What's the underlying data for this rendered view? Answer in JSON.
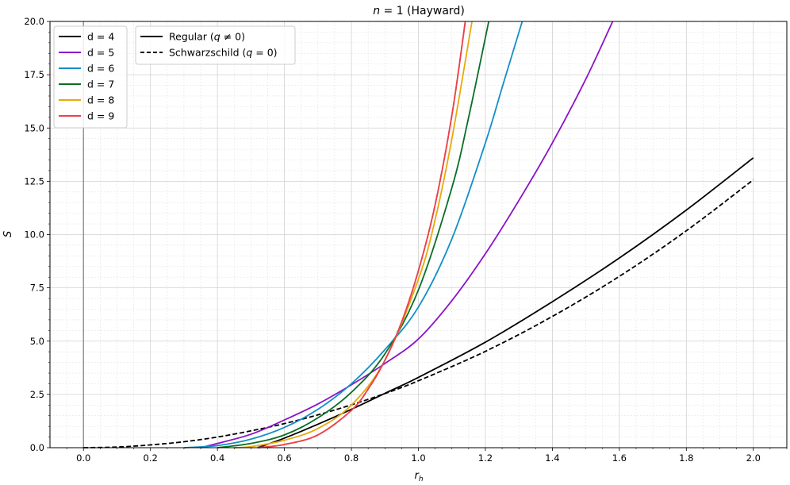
{
  "chart_data": {
    "type": "line",
    "title": "n = 1 (Hayward)",
    "title_parts": {
      "var": "n",
      "rest": " = 1 (Hayward)"
    },
    "xlabel": "r_h",
    "xlabel_parts": {
      "base": "r",
      "sub": "h"
    },
    "ylabel": "S",
    "xlim": [
      -0.1,
      2.1
    ],
    "ylim": [
      0,
      20
    ],
    "xticks": [
      0.0,
      0.2,
      0.4,
      0.6,
      0.8,
      1.0,
      1.2,
      1.4,
      1.6,
      1.8,
      2.0
    ],
    "xtick_labels": [
      "0.0",
      "0.2",
      "0.4",
      "0.6",
      "0.8",
      "1.0",
      "1.2",
      "1.4",
      "1.6",
      "1.8",
      "2.0"
    ],
    "yticks": [
      0.0,
      2.5,
      5.0,
      7.5,
      10.0,
      12.5,
      15.0,
      17.5,
      20.0
    ],
    "ytick_labels": [
      "0.0",
      "2.5",
      "5.0",
      "7.5",
      "10.0",
      "12.5",
      "15.0",
      "17.5",
      "20.0"
    ],
    "grid": true,
    "minor_grid": true,
    "vertical_reference_line_x": 0,
    "legend_dimension": {
      "placement": "top-left",
      "entries": [
        {
          "label": "d = 4",
          "color": "#000000"
        },
        {
          "label": "d = 5",
          "color": "#8b12c8"
        },
        {
          "label": "d = 6",
          "color": "#138fc8"
        },
        {
          "label": "d = 7",
          "color": "#0a6e26"
        },
        {
          "label": "d = 8",
          "color": "#e8a90c"
        },
        {
          "label": "d = 9",
          "color": "#e8434b"
        }
      ]
    },
    "legend_style": {
      "placement": "top-left",
      "entries": [
        {
          "label": "Regular (q ≠ 0)",
          "parts": [
            "Regular (",
            "q",
            " ≠ 0)"
          ],
          "dash": "solid"
        },
        {
          "label": "Schwarzschild (q = 0)",
          "parts": [
            "Schwarzschild (",
            "q",
            " = 0)"
          ],
          "dash": "dashed"
        }
      ]
    },
    "series": [
      {
        "dimension": "d = 4",
        "style": "Regular (q ≠ 0)",
        "color": "#000000",
        "dash": "solid",
        "x": [
          0.52,
          0.6,
          0.7,
          0.8,
          0.9,
          1.0,
          1.2,
          1.4,
          1.6,
          1.8,
          2.0
        ],
        "y": [
          0.0,
          0.45,
          1.1,
          1.8,
          2.55,
          3.3,
          4.95,
          6.85,
          8.9,
          11.15,
          13.6
        ]
      },
      {
        "dimension": "d = 4",
        "style": "Schwarzschild (q = 0)",
        "color": "#000000",
        "dash": "dashed",
        "x": [
          0.0,
          0.1,
          0.2,
          0.3,
          0.4,
          0.5,
          0.6,
          0.7,
          0.8,
          0.9,
          1.0,
          1.2,
          1.4,
          1.6,
          1.8,
          2.0
        ],
        "y": [
          0.0,
          0.03,
          0.13,
          0.28,
          0.5,
          0.79,
          1.13,
          1.54,
          2.01,
          2.54,
          3.14,
          4.52,
          6.16,
          8.04,
          10.18,
          12.57
        ]
      },
      {
        "dimension": "d = 5",
        "style": "Regular (q ≠ 0)",
        "color": "#8b12c8",
        "dash": "solid",
        "x": [
          0.35,
          0.4,
          0.5,
          0.6,
          0.7,
          0.8,
          0.9,
          1.0,
          1.1,
          1.2,
          1.3,
          1.4,
          1.5,
          1.58
        ],
        "y": [
          0.0,
          0.2,
          0.63,
          1.3,
          2.05,
          2.95,
          3.95,
          5.1,
          6.9,
          9.1,
          11.6,
          14.3,
          17.3,
          20.0
        ]
      },
      {
        "dimension": "d = 6",
        "style": "Regular (q ≠ 0)",
        "color": "#138fc8",
        "dash": "solid",
        "x": [
          0.3,
          0.4,
          0.5,
          0.6,
          0.7,
          0.8,
          0.9,
          1.0,
          1.1,
          1.2,
          1.25,
          1.31
        ],
        "y": [
          0.0,
          0.1,
          0.4,
          0.95,
          1.8,
          3.0,
          4.6,
          6.6,
          9.8,
          14.3,
          16.9,
          20.0
        ]
      },
      {
        "dimension": "d = 7",
        "style": "Regular (q ≠ 0)",
        "color": "#0a6e26",
        "dash": "solid",
        "x": [
          0.4,
          0.5,
          0.6,
          0.7,
          0.8,
          0.9,
          1.0,
          1.1,
          1.15,
          1.21
        ],
        "y": [
          0.0,
          0.2,
          0.6,
          1.4,
          2.6,
          4.4,
          7.4,
          12.2,
          15.5,
          20.0
        ]
      },
      {
        "dimension": "d = 8",
        "style": "Regular (q ≠ 0)",
        "color": "#e8a90c",
        "dash": "solid",
        "x": [
          0.45,
          0.5,
          0.6,
          0.7,
          0.8,
          0.9,
          1.0,
          1.05,
          1.1,
          1.16
        ],
        "y": [
          0.0,
          0.05,
          0.35,
          0.9,
          2.0,
          4.1,
          7.9,
          10.7,
          14.5,
          20.0
        ]
      },
      {
        "dimension": "d = 9",
        "style": "Regular (q ≠ 0)",
        "color": "#e8434b",
        "dash": "solid",
        "x": [
          0.52,
          0.6,
          0.7,
          0.8,
          0.85,
          0.9,
          0.95,
          1.0,
          1.05,
          1.1,
          1.14
        ],
        "y": [
          0.0,
          0.15,
          0.6,
          1.75,
          2.75,
          4.1,
          5.9,
          8.3,
          11.4,
          15.6,
          20.0
        ]
      },
      {
        "dimension": "d = 9",
        "style": "Schwarzschild (q = 0)",
        "color": "#e8434b",
        "dash": "dashed",
        "x": [
          0.52,
          0.6,
          0.7,
          0.8,
          0.85,
          0.9,
          0.95,
          1.0,
          1.05,
          1.1,
          1.14
        ],
        "y": [
          0.0,
          0.15,
          0.6,
          1.75,
          2.75,
          4.1,
          5.9,
          8.3,
          11.4,
          15.6,
          20.0
        ]
      }
    ]
  }
}
